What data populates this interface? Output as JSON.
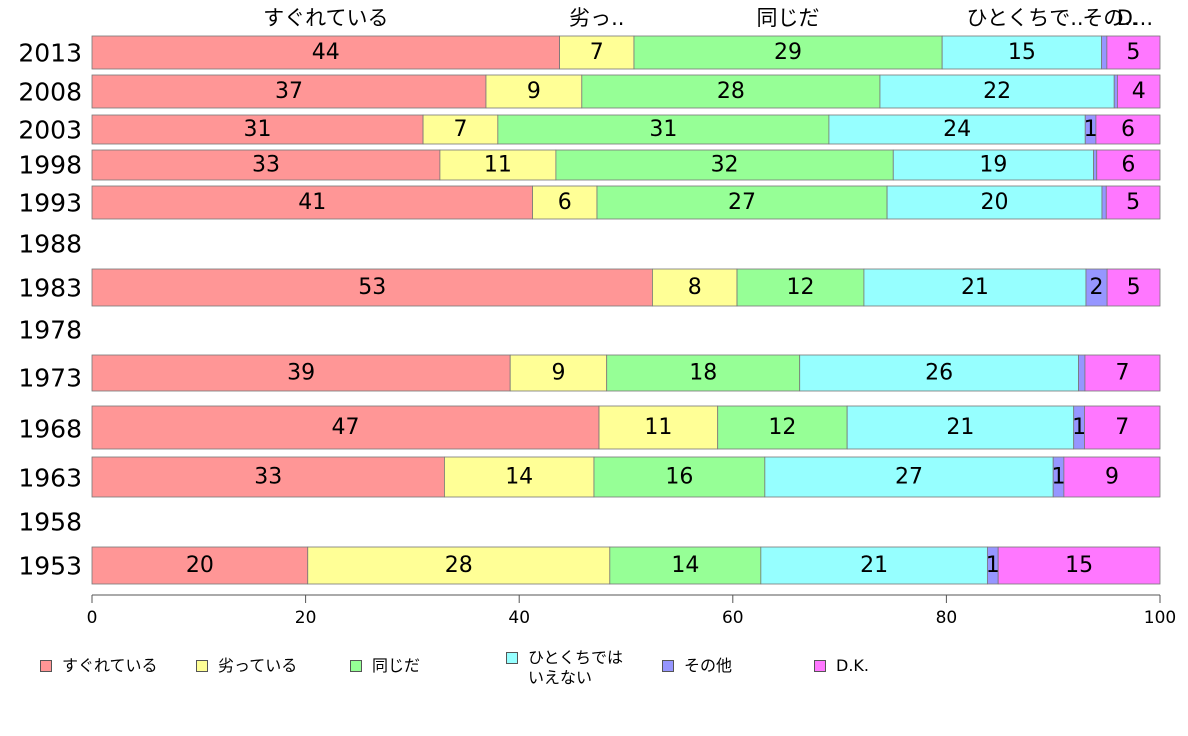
{
  "chart_data": {
    "type": "bar",
    "orientation": "horizontal",
    "stacked": true,
    "categories": [
      "2013",
      "2008",
      "2003",
      "1998",
      "1993",
      "1988",
      "1983",
      "1978",
      "1973",
      "1968",
      "1963",
      "1958",
      "1953"
    ],
    "series": [
      {
        "name": "すぐれている",
        "header": "すぐれている",
        "color": "#ff9696",
        "values": [
          44,
          37,
          31,
          33,
          41,
          null,
          53,
          null,
          39,
          47,
          33,
          null,
          20
        ]
      },
      {
        "name": "劣っている",
        "header": "劣っ..",
        "color": "#ffff96",
        "values": [
          7,
          9,
          7,
          11,
          6,
          null,
          8,
          null,
          9,
          11,
          14,
          null,
          28
        ]
      },
      {
        "name": "同じだ",
        "header": "同じだ",
        "color": "#96ff96",
        "values": [
          29,
          28,
          31,
          32,
          27,
          null,
          12,
          null,
          18,
          12,
          16,
          null,
          14
        ]
      },
      {
        "name": "ひとくちでは\nいえない",
        "header": "ひとくちで..",
        "color": "#96ffff",
        "values": [
          15,
          22,
          24,
          19,
          20,
          null,
          21,
          null,
          26,
          21,
          27,
          null,
          21
        ]
      },
      {
        "name": "その他",
        "header": "その..",
        "color": "#9696ff",
        "values": [
          0.5,
          0.3,
          1,
          0.3,
          0.4,
          null,
          2,
          null,
          0.6,
          1,
          1,
          null,
          1
        ]
      },
      {
        "name": "D.K.",
        "header": "D...",
        "color": "#ff77ff",
        "values": [
          5,
          4,
          6,
          6,
          5,
          null,
          5,
          null,
          7,
          7,
          9,
          null,
          15
        ]
      }
    ],
    "xlim": [
      0,
      100
    ],
    "xticks": [
      0,
      20,
      40,
      60,
      80,
      100
    ],
    "data_labels_min": 1,
    "legend_position": "bottom"
  }
}
